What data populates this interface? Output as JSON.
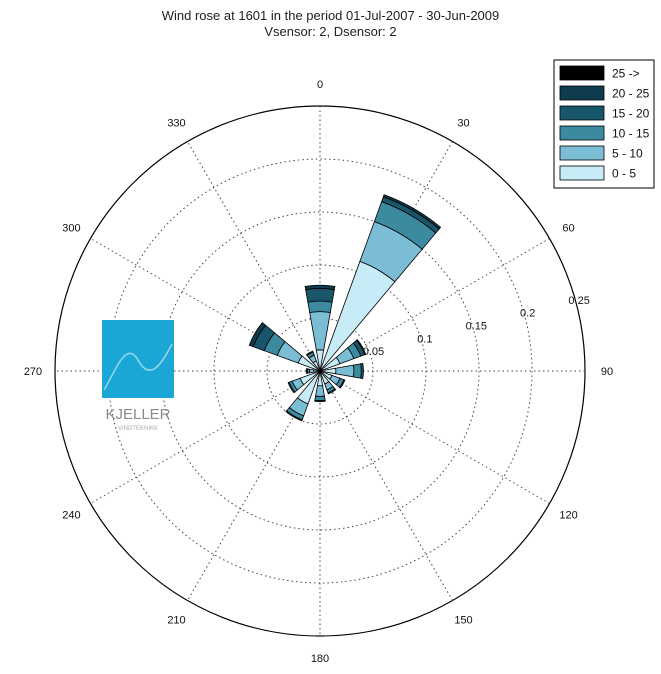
{
  "chart_data": {
    "type": "polar-stacked-bar",
    "title": "Wind rose at 1601 in the period 01-Jul-2007  -  30-Jun-2009",
    "subtitle": "Vsensor: 2, Dsensor: 2",
    "angle_labels": [
      "0",
      "30",
      "60",
      "90",
      "120",
      "150",
      "180",
      "210",
      "240",
      "270",
      "300",
      "330"
    ],
    "radial_ticks": [
      "0.05",
      "0.1",
      "0.15",
      "0.2",
      "0.25"
    ],
    "radial_tick_values": [
      0.05,
      0.1,
      0.15,
      0.2,
      0.25
    ],
    "rmax": 0.25,
    "grid": true,
    "legend_position": "top-right",
    "speed_bins": [
      {
        "label": "25 ->",
        "color": "#000000"
      },
      {
        "label": "20 - 25",
        "color": "#0e3b4e"
      },
      {
        "label": "15 - 20",
        "color": "#18576b"
      },
      {
        "label": "10 - 15",
        "color": "#3c8aa0"
      },
      {
        "label": "5 - 10",
        "color": "#7cbdd6"
      },
      {
        "label": "0 -  5",
        "color": "#c7ebf7"
      }
    ],
    "sectors": [
      {
        "direction": 0,
        "values": [
          0.02,
          0.036,
          0.01,
          0.012,
          0.003,
          0.0
        ]
      },
      {
        "direction": 30,
        "values": [
          0.11,
          0.04,
          0.02,
          0.005,
          0.002,
          0.0
        ]
      },
      {
        "direction": 60,
        "values": [
          0.02,
          0.014,
          0.007,
          0.004,
          0.001,
          0.0
        ]
      },
      {
        "direction": 90,
        "values": [
          0.015,
          0.017,
          0.007,
          0.002,
          0.0,
          0.0
        ]
      },
      {
        "direction": 120,
        "values": [
          0.012,
          0.008,
          0.004,
          0.001,
          0.0,
          0.0
        ]
      },
      {
        "direction": 150,
        "values": [
          0.013,
          0.006,
          0.003,
          0.001,
          0.0,
          0.0
        ]
      },
      {
        "direction": 180,
        "values": [
          0.014,
          0.01,
          0.004,
          0.001,
          0.0,
          0.0
        ]
      },
      {
        "direction": 210,
        "values": [
          0.033,
          0.012,
          0.004,
          0.001,
          0.0,
          0.0
        ]
      },
      {
        "direction": 240,
        "values": [
          0.02,
          0.008,
          0.003,
          0.001,
          0.0,
          0.0
        ]
      },
      {
        "direction": 270,
        "values": [
          0.006,
          0.004,
          0.002,
          0.001,
          0.0,
          0.0
        ]
      },
      {
        "direction": 300,
        "values": [
          0.022,
          0.021,
          0.013,
          0.011,
          0.004,
          0.0
        ]
      },
      {
        "direction": 330,
        "values": [
          0.01,
          0.006,
          0.003,
          0.001,
          0.0,
          0.0
        ]
      }
    ]
  },
  "logo": {
    "main": "KJELLER",
    "sub": "VINDTEKNIKK",
    "color": "#1aa7d6"
  }
}
